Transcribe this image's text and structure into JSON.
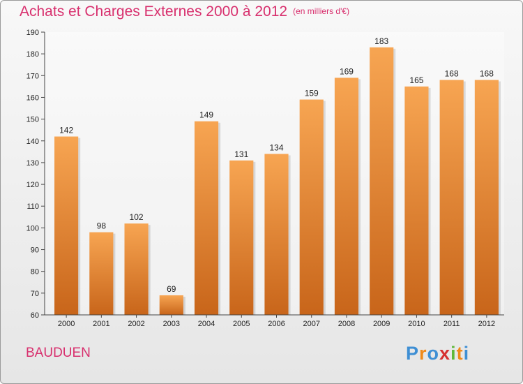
{
  "title": "Achats et Charges Externes 2000 à 2012",
  "unit": "(en milliers d'€)",
  "commune": "BAUDUEN",
  "logo": {
    "text": "Proxiti",
    "letters": [
      {
        "ch": "P",
        "color": "#3e8fd4"
      },
      {
        "ch": "r",
        "color": "#f08a1a"
      },
      {
        "ch": "o",
        "color": "#3e8fd4"
      },
      {
        "ch": "x",
        "color": "#d62f2f"
      },
      {
        "ch": "i",
        "color": "#5fb83a"
      },
      {
        "ch": "t",
        "color": "#f08a1a"
      },
      {
        "ch": "i",
        "color": "#3e8fd4"
      }
    ]
  },
  "colors": {
    "bar_top": "#f7a552",
    "bar_bottom": "#c8651a",
    "title": "#d8306e"
  },
  "chart_data": {
    "type": "bar",
    "categories": [
      "2000",
      "2001",
      "2002",
      "2003",
      "2004",
      "2005",
      "2006",
      "2007",
      "2008",
      "2009",
      "2010",
      "2011",
      "2012"
    ],
    "values": [
      142,
      98,
      102,
      69,
      149,
      131,
      134,
      159,
      169,
      183,
      165,
      168,
      168
    ],
    "ylim": [
      60,
      190
    ],
    "yticks": [
      60,
      70,
      80,
      90,
      100,
      110,
      120,
      130,
      140,
      150,
      160,
      170,
      180,
      190
    ],
    "grid": false,
    "data_labels": true
  }
}
